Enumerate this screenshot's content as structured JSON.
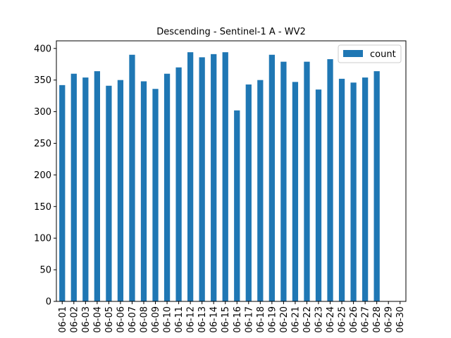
{
  "chart_data": {
    "type": "bar",
    "title": "Descending - Sentinel-1 A - WV2",
    "xlabel": "",
    "ylabel": "",
    "categories": [
      "06-01",
      "06-02",
      "06-03",
      "06-04",
      "06-05",
      "06-06",
      "06-07",
      "06-08",
      "06-09",
      "06-10",
      "06-11",
      "06-12",
      "06-13",
      "06-14",
      "06-15",
      "06-16",
      "06-17",
      "06-18",
      "06-19",
      "06-20",
      "06-21",
      "06-22",
      "06-23",
      "06-24",
      "06-25",
      "06-26",
      "06-27",
      "06-28",
      "06-29",
      "06-30"
    ],
    "series": [
      {
        "name": "count",
        "color": "#1f77b4",
        "values": [
          342,
          360,
          354,
          364,
          341,
          350,
          390,
          348,
          336,
          360,
          370,
          394,
          386,
          391,
          394,
          302,
          343,
          350,
          390,
          379,
          347,
          379,
          335,
          383,
          352,
          346,
          354,
          364,
          null,
          null
        ]
      }
    ],
    "ylim": [
      0,
      412
    ],
    "yticks": [
      0,
      50,
      100,
      150,
      200,
      250,
      300,
      350,
      400
    ],
    "grid": false,
    "legend_position": "top-right"
  }
}
